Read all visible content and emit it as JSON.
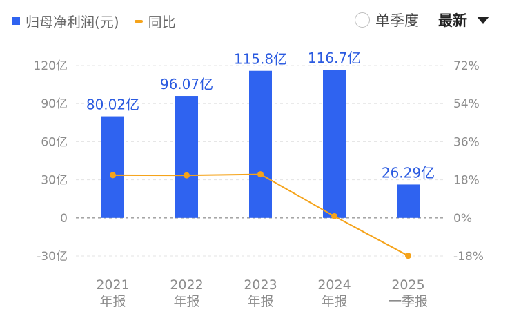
{
  "legend": {
    "bar_label": "归母净利润(元)",
    "line_label": "同比"
  },
  "controls": {
    "single_quarter_label": "单季度",
    "sort_label": "最新"
  },
  "colors": {
    "bar": "#2f63f0",
    "line": "#f5a31a",
    "value_label": "#2a5ae0",
    "axis_text": "#8c8c8c"
  },
  "chart_data": {
    "type": "bar",
    "categories": [
      [
        "2021",
        "年报"
      ],
      [
        "2022",
        "年报"
      ],
      [
        "2023",
        "年报"
      ],
      [
        "2024",
        "年报"
      ],
      [
        "2025",
        "一季报"
      ]
    ],
    "series": [
      {
        "name": "归母净利润(元)",
        "type": "bar",
        "axis": "left",
        "values": [
          80.02,
          96.07,
          115.8,
          116.7,
          26.29
        ],
        "labels": [
          "80.02亿",
          "96.07亿",
          "115.8亿",
          "116.7亿",
          "26.29亿"
        ]
      },
      {
        "name": "同比",
        "type": "line",
        "axis": "right",
        "values": [
          20.2,
          20.1,
          20.6,
          0.8,
          -17.9
        ]
      }
    ],
    "y_left": {
      "ylim": [
        -30,
        120
      ],
      "ticks": [
        120,
        90,
        60,
        30,
        0,
        -30
      ],
      "tick_labels": [
        "120亿",
        "90亿",
        "60亿",
        "30亿",
        "0",
        "-30亿"
      ]
    },
    "y_right": {
      "ylim": [
        -18,
        72
      ],
      "ticks": [
        72,
        54,
        36,
        18,
        0,
        -18
      ],
      "tick_labels": [
        "72%",
        "54%",
        "36%",
        "18%",
        "0%",
        "-18%"
      ]
    },
    "grid": "horizontal dashed"
  }
}
